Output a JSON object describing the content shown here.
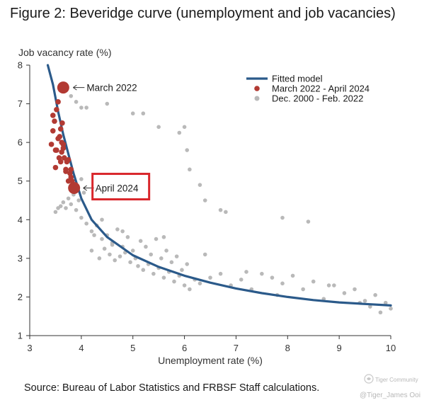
{
  "figure_title": "Figure 2: Beveridge curve (unemployment and job vacancies)",
  "source_note": "Source: Bureau of Labor Statistics and FRBSF Staff calculations.",
  "watermark": {
    "brand": "Tiger Community",
    "handle": "@Tiger_James Ooi"
  },
  "colors": {
    "fitted": "#2b5a8a",
    "recent": "#b23a33",
    "historical": "#b9b9b9",
    "highlight_box": "#d9262b"
  },
  "chart_data": {
    "type": "scatter",
    "title": "Figure 2: Beveridge curve (unemployment and job vacancies)",
    "xlabel": "Unemployment rate (%)",
    "ylabel": "Job vacancy rate (%)",
    "xlim": [
      3,
      10
    ],
    "ylim": [
      1,
      8
    ],
    "xticks": [
      "3",
      "4",
      "5",
      "6",
      "7",
      "8",
      "9",
      "10"
    ],
    "yticks": [
      "1",
      "2",
      "3",
      "4",
      "5",
      "6",
      "7",
      "8"
    ],
    "grid": false,
    "legend_position": "top-right",
    "legend": [
      "Fitted model",
      "March 2022 - April 2024",
      "Dec. 2000 - Feb. 2022"
    ],
    "fitted_model": {
      "name": "Fitted model",
      "x": [
        3.35,
        3.45,
        3.55,
        3.65,
        3.75,
        3.85,
        4.0,
        4.2,
        4.5,
        5.0,
        5.5,
        6.0,
        6.5,
        7.0,
        7.5,
        8.0,
        8.5,
        9.0,
        9.5,
        10.0
      ],
      "y": [
        8.2,
        7.5,
        6.8,
        6.2,
        5.7,
        5.2,
        4.55,
        4.0,
        3.55,
        3.08,
        2.78,
        2.55,
        2.37,
        2.22,
        2.1,
        2.0,
        1.92,
        1.86,
        1.82,
        1.78
      ]
    },
    "series": [
      {
        "name": "March 2022 - April 2024",
        "x": [
          3.42,
          3.45,
          3.48,
          3.5,
          3.52,
          3.55,
          3.58,
          3.6,
          3.62,
          3.63,
          3.65,
          3.67,
          3.7,
          3.72,
          3.75,
          3.78,
          3.8,
          3.82,
          3.45,
          3.5,
          3.55,
          3.6,
          3.65,
          3.7,
          3.75,
          3.8,
          3.85,
          3.52,
          3.57,
          3.62
        ],
        "y": [
          5.95,
          6.3,
          6.55,
          5.8,
          6.85,
          7.05,
          6.15,
          5.5,
          6.0,
          6.5,
          5.95,
          5.6,
          5.3,
          5.5,
          5.55,
          5.2,
          5.3,
          5.0,
          6.7,
          5.35,
          6.1,
          6.35,
          5.85,
          5.25,
          5.0,
          5.1,
          4.9,
          5.8,
          5.6,
          5.75
        ]
      },
      {
        "name": "Dec. 2000 - Feb. 2022",
        "x": [
          3.5,
          3.55,
          3.6,
          3.65,
          3.7,
          3.75,
          3.8,
          3.85,
          3.9,
          3.95,
          4.0,
          4.1,
          4.2,
          4.3,
          4.4,
          4.5,
          4.6,
          4.7,
          4.8,
          4.9,
          5.0,
          4.2,
          4.35,
          4.45,
          4.55,
          4.65,
          4.75,
          4.85,
          4.95,
          5.05,
          5.1,
          5.2,
          5.3,
          5.4,
          5.5,
          5.6,
          5.7,
          5.8,
          5.9,
          6.0,
          5.15,
          5.25,
          5.35,
          5.45,
          5.55,
          5.65,
          5.75,
          5.85,
          5.95,
          6.05,
          6.1,
          6.2,
          6.3,
          6.5,
          6.7,
          6.9,
          7.1,
          7.3,
          7.5,
          7.7,
          7.9,
          8.1,
          8.3,
          8.5,
          8.7,
          8.9,
          9.1,
          9.3,
          9.5,
          9.6,
          9.7,
          9.8,
          9.9,
          10.0,
          3.8,
          3.9,
          4.0,
          4.1,
          4.5,
          5.0,
          5.2,
          5.5,
          5.9,
          6.0,
          6.05,
          6.1,
          6.3,
          6.4,
          6.7,
          6.8,
          7.9,
          8.4,
          4.0,
          4.05,
          4.25,
          4.4,
          4.6,
          4.8,
          5.6,
          6.4,
          7.2,
          7.8,
          8.8,
          9.4
        ],
        "y": [
          4.2,
          4.3,
          4.35,
          4.45,
          4.3,
          4.55,
          4.4,
          4.65,
          4.25,
          4.5,
          4.05,
          3.9,
          3.7,
          3.85,
          3.5,
          3.6,
          3.4,
          3.75,
          3.3,
          3.55,
          3.2,
          3.2,
          3.0,
          3.25,
          3.1,
          2.95,
          3.05,
          3.15,
          2.9,
          3.0,
          2.8,
          2.7,
          2.85,
          2.6,
          2.75,
          2.5,
          2.65,
          2.4,
          2.55,
          2.3,
          3.45,
          3.3,
          3.1,
          3.5,
          3.0,
          3.2,
          2.9,
          3.05,
          2.7,
          2.85,
          2.2,
          2.45,
          2.35,
          2.5,
          2.6,
          2.3,
          2.45,
          2.2,
          2.6,
          2.5,
          2.35,
          2.55,
          2.2,
          2.4,
          1.95,
          2.3,
          2.1,
          2.2,
          1.9,
          1.75,
          2.05,
          1.6,
          1.85,
          1.7,
          7.2,
          7.05,
          6.9,
          6.9,
          7.0,
          6.75,
          6.75,
          6.4,
          6.25,
          6.4,
          5.8,
          5.3,
          4.9,
          4.5,
          4.25,
          4.2,
          4.05,
          3.95,
          5.05,
          4.7,
          3.6,
          4.0,
          3.35,
          3.7,
          3.55,
          3.1,
          2.65,
          2.05,
          2.3,
          1.85
        ]
      }
    ],
    "annotations": [
      {
        "text": "March 2022",
        "x": 3.65,
        "y": 7.42
      },
      {
        "text": "April 2024",
        "x": 3.86,
        "y": 4.82
      }
    ]
  }
}
